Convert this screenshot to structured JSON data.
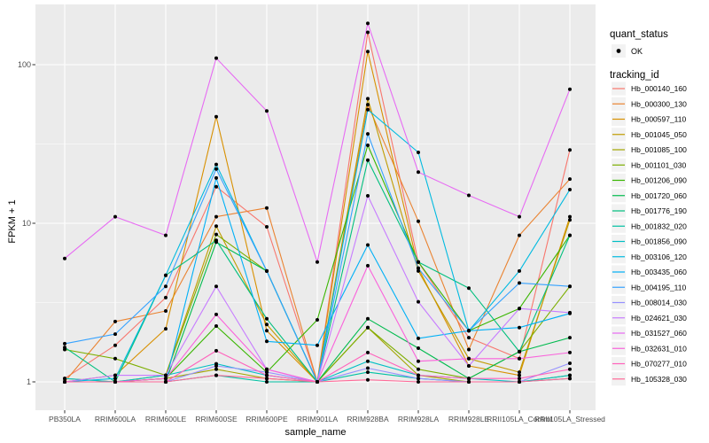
{
  "figure": {
    "y_axis_title": "FPKM + 1",
    "x_axis_title": "sample_name",
    "legend": {
      "quant_status_title": "quant_status",
      "quant_status_ok_label": "OK",
      "tracking_title": "tracking_id"
    },
    "colors": {
      "panel_background": "#EBEBEB",
      "gridline": "#FFFFFF",
      "tick_label": "#4D4D4D",
      "axis_title": "#000000",
      "point": "#000000",
      "legend_key_background": "#F2F2F2"
    }
  },
  "chart_data": {
    "type": "line",
    "title": "",
    "xlabel": "sample_name",
    "ylabel": "FPKM + 1",
    "y_scale": "log10",
    "y_ticks": [
      1,
      10,
      100
    ],
    "ylim": [
      0.66,
      240
    ],
    "grid": true,
    "legend_position": "right",
    "point_marker": "black dot (quant_status OK)",
    "categories": [
      "PB350LA",
      "RRIM600LA",
      "RRIM600LE",
      "RRIM600SE",
      "RRIM600PE",
      "RRIM901LA",
      "RRIM928BA",
      "RRIM928LA",
      "RRIM928LE",
      "RRII105LA_Control",
      "RRII105LA_Stressed"
    ],
    "series": [
      {
        "name": "Hb_000140_160",
        "color": "#F8766D",
        "values": [
          1.05,
          1.7,
          3.4,
          17,
          9.5,
          1.0,
          160,
          5.7,
          1.9,
          1.4,
          29
        ]
      },
      {
        "name": "Hb_000300_130",
        "color": "#EA8331",
        "values": [
          1.0,
          2.4,
          2.8,
          11,
          12.5,
          1.0,
          56,
          10.3,
          1.6,
          8.4,
          19
        ]
      },
      {
        "name": "Hb_000597_110",
        "color": "#D89000",
        "values": [
          1.0,
          1.1,
          2.16,
          47,
          2.1,
          1.0,
          121,
          5.2,
          1.26,
          1.1,
          11
        ]
      },
      {
        "name": "Hb_001045_050",
        "color": "#C09B00",
        "values": [
          1.05,
          1.0,
          1.1,
          9.6,
          2.3,
          1.0,
          61,
          5.0,
          1.4,
          1.15,
          10.5
        ]
      },
      {
        "name": "Hb_001085_100",
        "color": "#A3A500",
        "values": [
          1.0,
          1.0,
          1.05,
          1.2,
          1.05,
          1.0,
          2.2,
          1.1,
          1.0,
          1.0,
          1.1
        ]
      },
      {
        "name": "Hb_001101_030",
        "color": "#7CAE00",
        "values": [
          1.6,
          1.4,
          1.1,
          8.5,
          5.0,
          1.0,
          2.2,
          1.2,
          1.05,
          1.55,
          4.0
        ]
      },
      {
        "name": "Hb_001206_090",
        "color": "#39B600",
        "values": [
          1.0,
          1.0,
          1.05,
          2.25,
          1.15,
          2.46,
          31,
          5.7,
          2.1,
          2.9,
          8.4
        ]
      },
      {
        "name": "Hb_001720_060",
        "color": "#00BB4E",
        "values": [
          1.0,
          1.0,
          1.0,
          7.6,
          5.0,
          1.0,
          2.5,
          1.63,
          1.05,
          1.55,
          1.9
        ]
      },
      {
        "name": "Hb_001776_190",
        "color": "#00BF7D",
        "values": [
          1.65,
          1.0,
          4.7,
          7.8,
          2.5,
          1.0,
          25,
          5.7,
          3.9,
          1.55,
          8.4
        ]
      },
      {
        "name": "Hb_001832_020",
        "color": "#00C1A3",
        "values": [
          1.0,
          1.0,
          1.0,
          1.1,
          1.0,
          1.0,
          1.15,
          1.05,
          1.0,
          1.0,
          1.05
        ]
      },
      {
        "name": "Hb_001856_090",
        "color": "#00BFC4",
        "values": [
          1.05,
          1.0,
          1.1,
          1.3,
          1.1,
          1.0,
          1.35,
          1.1,
          1.05,
          1.0,
          1.1
        ]
      },
      {
        "name": "Hb_003106_120",
        "color": "#00BAE0",
        "values": [
          1.0,
          1.05,
          4.7,
          23.5,
          5.0,
          1.0,
          52,
          28,
          2.1,
          5.0,
          16.3
        ]
      },
      {
        "name": "Hb_003435_060",
        "color": "#00B0F6",
        "values": [
          1.0,
          1.0,
          1.0,
          19.3,
          1.8,
          1.7,
          7.3,
          1.88,
          2.1,
          2.2,
          2.7
        ]
      },
      {
        "name": "Hb_004195_110",
        "color": "#35A2FF",
        "values": [
          1.74,
          2.0,
          4.0,
          22,
          5.0,
          1.0,
          36.6,
          5.2,
          2.1,
          4.2,
          4.0
        ]
      },
      {
        "name": "Hb_008014_030",
        "color": "#9590FF",
        "values": [
          1.0,
          1.0,
          1.0,
          1.26,
          1.15,
          1.0,
          1.22,
          1.05,
          1.0,
          1.0,
          1.31
        ]
      },
      {
        "name": "Hb_024621_030",
        "color": "#C77CFF",
        "values": [
          1.0,
          1.1,
          1.1,
          4.0,
          1.2,
          1.0,
          14.9,
          3.2,
          1.26,
          2.9,
          2.73
        ]
      },
      {
        "name": "Hb_031527_060",
        "color": "#E76BF3",
        "values": [
          6.0,
          11.0,
          8.4,
          110,
          51,
          5.7,
          182,
          21,
          15,
          11,
          70
        ]
      },
      {
        "name": "Hb_032631_010",
        "color": "#FA62DB",
        "values": [
          1.0,
          1.0,
          1.05,
          2.66,
          1.2,
          1.0,
          5.4,
          1.35,
          1.4,
          1.4,
          1.53
        ]
      },
      {
        "name": "Hb_070277_010",
        "color": "#FF62BC",
        "values": [
          1.0,
          1.0,
          1.0,
          1.57,
          1.1,
          1.0,
          1.53,
          1.1,
          1.05,
          1.05,
          1.2
        ]
      },
      {
        "name": "Hb_105328_030",
        "color": "#FF6A98",
        "values": [
          1.0,
          1.0,
          1.0,
          1.1,
          1.05,
          1.0,
          1.03,
          1.0,
          1.0,
          1.0,
          1.05
        ]
      }
    ]
  }
}
